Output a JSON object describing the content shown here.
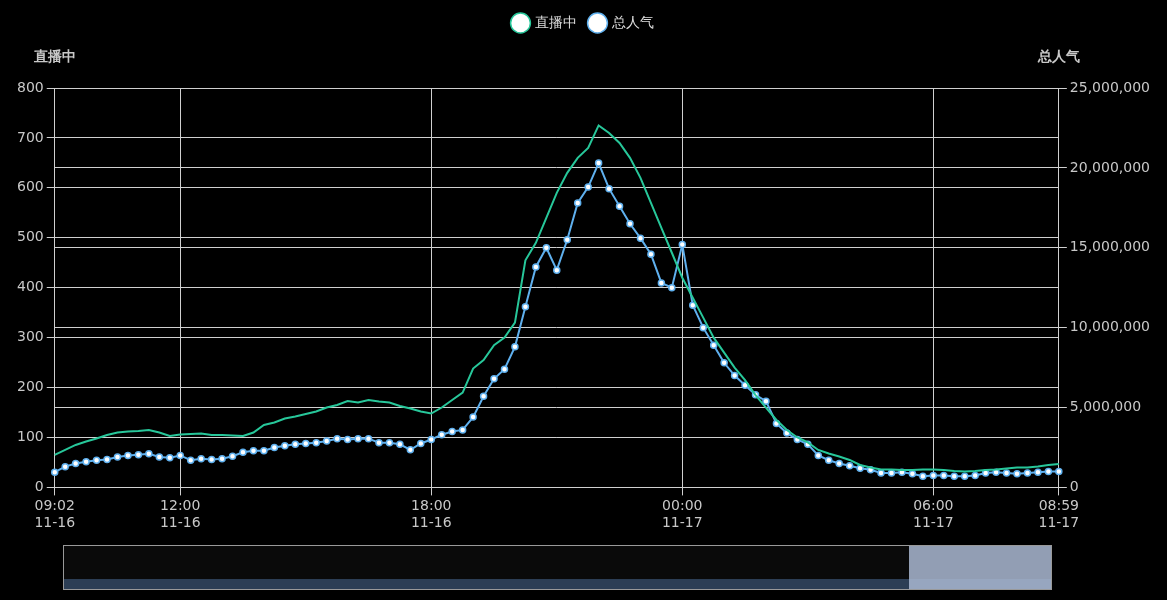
{
  "chart_data": {
    "type": "line",
    "y_label": "直播中",
    "y2_label": "总人气",
    "legend": "top",
    "grid": true,
    "categories": [
      "09:02\n11-16",
      null,
      null,
      null,
      null,
      null,
      null,
      null,
      null,
      null,
      null,
      null,
      "12:00\n11-16",
      null,
      null,
      null,
      null,
      null,
      null,
      null,
      null,
      null,
      null,
      null,
      null,
      null,
      null,
      null,
      null,
      null,
      null,
      null,
      null,
      null,
      null,
      null,
      "18:00\n11-16",
      null,
      null,
      null,
      null,
      null,
      null,
      null,
      null,
      null,
      null,
      null,
      null,
      null,
      null,
      null,
      null,
      null,
      null,
      null,
      null,
      null,
      null,
      null,
      "00:00\n11-17",
      null,
      null,
      null,
      null,
      null,
      null,
      null,
      null,
      null,
      null,
      null,
      null,
      null,
      null,
      null,
      null,
      null,
      null,
      null,
      null,
      null,
      null,
      null,
      "06:00\n11-17",
      null,
      null,
      null,
      null,
      null,
      null,
      null,
      null,
      null,
      null,
      null,
      "08:59\n11-17"
    ],
    "series": [
      {
        "name": "直播中",
        "color": "#27c79a",
        "marker": "none",
        "line_style": "solid",
        "axis": "y",
        "values": [
          65,
          75,
          85,
          92,
          98,
          105,
          110,
          112,
          113,
          115,
          110,
          103,
          106,
          107,
          108,
          105,
          105,
          104,
          103,
          110,
          125,
          130,
          138,
          142,
          147,
          152,
          160,
          165,
          173,
          170,
          175,
          172,
          170,
          163,
          158,
          152,
          148,
          160,
          175,
          190,
          238,
          255,
          285,
          300,
          330,
          455,
          490,
          540,
          590,
          630,
          660,
          680,
          725,
          710,
          690,
          660,
          620,
          570,
          520,
          470,
          420,
          380,
          340,
          300,
          270,
          240,
          215,
          185,
          160,
          135,
          115,
          100,
          90,
          75,
          68,
          62,
          55,
          45,
          40,
          36,
          36,
          35,
          35,
          36,
          36,
          35,
          33,
          32,
          33,
          35,
          36,
          38,
          40,
          40,
          42,
          45,
          47
        ]
      },
      {
        "name": "总人气",
        "color": "#5fb0ee",
        "marker": "circle",
        "line_style": "solid",
        "axis": "y2",
        "values": [
          950000,
          1300000,
          1500000,
          1600000,
          1700000,
          1750000,
          1900000,
          2000000,
          2050000,
          2100000,
          1900000,
          1850000,
          2000000,
          1700000,
          1800000,
          1750000,
          1800000,
          1950000,
          2200000,
          2300000,
          2300000,
          2500000,
          2600000,
          2700000,
          2750000,
          2800000,
          2900000,
          3050000,
          3000000,
          3050000,
          3050000,
          2800000,
          2800000,
          2700000,
          2350000,
          2750000,
          3000000,
          3300000,
          3500000,
          3600000,
          4400000,
          5700000,
          6800000,
          7400000,
          8800000,
          11300000,
          13800000,
          15000000,
          13600000,
          15500000,
          17800000,
          18800000,
          20300000,
          18700000,
          17600000,
          16500000,
          15600000,
          14600000,
          12800000,
          12500000,
          15200000,
          11400000,
          10000000,
          8900000,
          7800000,
          7000000,
          6400000,
          5800000,
          5400000,
          4000000,
          3400000,
          3000000,
          2700000,
          2000000,
          1700000,
          1500000,
          1350000,
          1200000,
          1100000,
          900000,
          900000,
          950000,
          850000,
          700000,
          750000,
          750000,
          700000,
          700000,
          750000,
          900000,
          950000,
          900000,
          850000,
          900000,
          950000,
          1000000,
          1000000
        ]
      }
    ],
    "ylim": [
      0,
      800
    ],
    "yticks": [
      0,
      100,
      200,
      300,
      400,
      500,
      600,
      700,
      800
    ],
    "y2lim": [
      0,
      25000000
    ],
    "y2ticks": [
      0,
      {
        "value": 5000000,
        "label": "5,000,000"
      },
      {
        "value": 10000000,
        "label": "10,000,000"
      },
      {
        "value": 15000000,
        "label": "15,000,000"
      },
      {
        "value": 20000000,
        "label": "20,000,000"
      },
      {
        "value": 25000000,
        "label": "25,000,000"
      }
    ]
  }
}
